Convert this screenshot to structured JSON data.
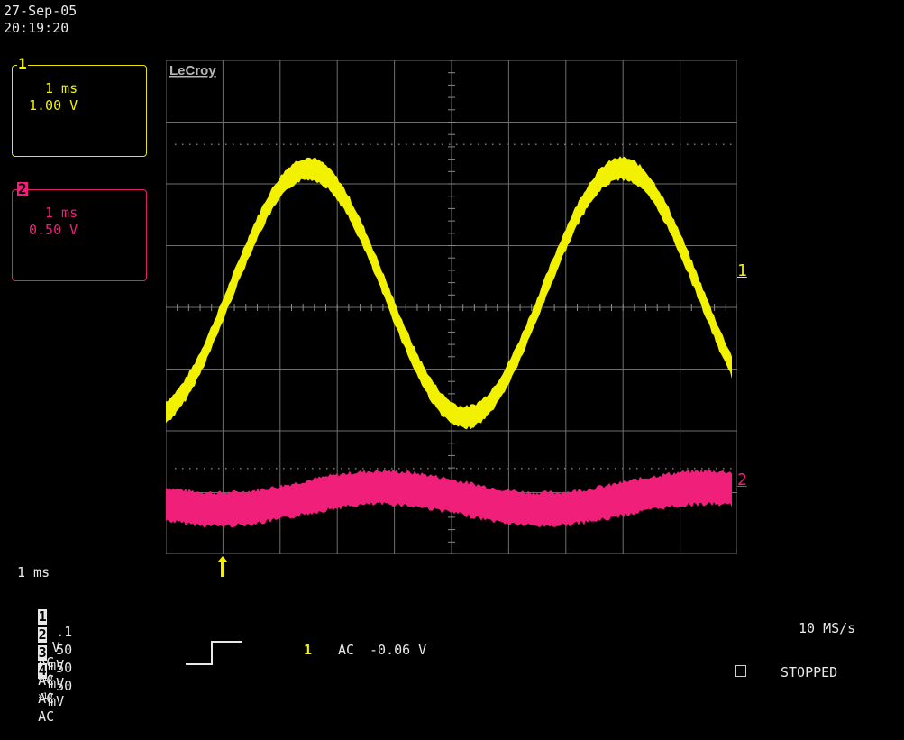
{
  "datetime": {
    "date": "27-Sep-05",
    "time": "20:19:20"
  },
  "brand": "LeCroy",
  "channel1_box": {
    "tag": "1",
    "timebase": "1 ms",
    "volts": "1.00 V"
  },
  "channel2_box": {
    "tag": "2",
    "timebase": "1 ms",
    "volts": "0.50 V"
  },
  "trace_markers": {
    "ch1": "1",
    "ch2": "2"
  },
  "timebase": "1 ms",
  "channels": [
    {
      "num": "1",
      "scale": ".1",
      "unit": "V",
      "coupling": "AC",
      "probe": "×10"
    },
    {
      "num": "2",
      "scale": "50",
      "unit": "mV",
      "coupling": "AC",
      "probe": "×10"
    },
    {
      "num": "3",
      "scale": "50",
      "unit": "mV",
      "coupling": "AC",
      "probe": ""
    },
    {
      "num": "4",
      "scale": "50",
      "unit": "mV",
      "coupling": "AC",
      "probe": ""
    }
  ],
  "trigger": {
    "source": "1",
    "coupling": "AC",
    "level": "-0.06 V"
  },
  "sample_rate": "10 MS/s",
  "status": "STOPPED",
  "colors": {
    "ch1": "#f2f200",
    "ch2": "#f0207a",
    "grid": "#6e6e6e",
    "background": "#000000"
  }
}
